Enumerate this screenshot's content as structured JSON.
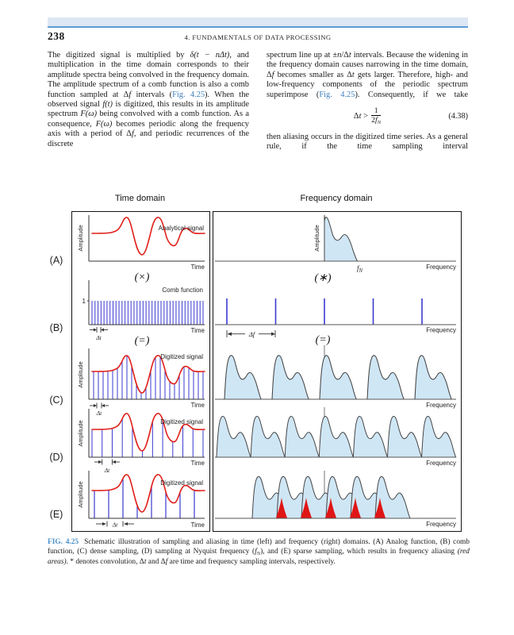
{
  "header": {
    "page_number": "238",
    "running_title": "4. FUNDAMENTALS OF DATA PROCESSING"
  },
  "body": {
    "left_paragraph": [
      {
        "t": "The digitized signal is multiplied by "
      },
      {
        "t": "δ(t − nΔt)",
        "c": "i"
      },
      {
        "t": ", and multiplication in the time domain corresponds to their amplitude spectra being convolved in the frequency domain. The amplitude spectrum of a comb function is also a comb function sampled at Δ"
      },
      {
        "t": "f",
        "c": "i"
      },
      {
        "t": " intervals ("
      },
      {
        "t": "Fig. 4.25",
        "c": "link"
      },
      {
        "t": "). When the observed signal "
      },
      {
        "t": "f(t)",
        "c": "i"
      },
      {
        "t": " is digitized, this results in its amplitude spectrum "
      },
      {
        "t": "F(ω)",
        "c": "i"
      },
      {
        "t": " being convolved with a comb function. As a consequence, "
      },
      {
        "t": "F(ω)",
        "c": "i"
      },
      {
        "t": " becomes periodic along the frequency axis with a period of Δ"
      },
      {
        "t": "f",
        "c": "i"
      },
      {
        "t": ", and periodic recurrences of the discrete"
      }
    ],
    "right_paragraph_1": [
      {
        "t": "spectrum line up at ±"
      },
      {
        "t": "n",
        "c": "i"
      },
      {
        "t": "/Δ"
      },
      {
        "t": "t",
        "c": "i"
      },
      {
        "t": " intervals. Because the widening in the frequency domain causes narrowing in the time domain, Δ"
      },
      {
        "t": "f",
        "c": "i"
      },
      {
        "t": " becomes smaller as Δ"
      },
      {
        "t": "t",
        "c": "i"
      },
      {
        "t": " gets larger. Therefore, high- and low-frequency components of the periodic spectrum superimpose ("
      },
      {
        "t": "Fig. 4.25",
        "c": "link"
      },
      {
        "t": "). Consequently, if we take"
      }
    ],
    "equation": {
      "lhs_segments": [
        {
          "t": "Δ"
        },
        {
          "t": "t",
          "c": "i"
        },
        {
          "t": " >"
        }
      ],
      "numerator": "1",
      "denominator_segments": [
        {
          "t": "2"
        },
        {
          "t": "f",
          "c": "i"
        },
        {
          "t": "N",
          "c": "sub"
        }
      ],
      "number": "(4.38)"
    },
    "right_paragraph_2": "then aliasing occurs in the digitized time series. As a general rule, if the time sampling interval"
  },
  "figure": {
    "time_domain_title": "Time domain",
    "frequency_domain_title": "Frequency domain",
    "panel_labels": [
      "(A)",
      "(B)",
      "(C)",
      "(D)",
      "(E)"
    ],
    "labels": {
      "amplitude": "Amplitude",
      "time": "Time",
      "frequency": "Frequency",
      "analytical_signal": "Analytical signal",
      "comb_function": "Comb function",
      "digitized_signal": "Digitized signal",
      "one": "1",
      "delta_t": "Δt",
      "delta_f": "Δf",
      "f_italic": "f",
      "f_sub": "N"
    },
    "operators": {
      "multiply": "(×)",
      "convolve": "(∗)",
      "equals": "(=)"
    }
  },
  "caption": {
    "label": "FIG. 4.25",
    "segments": [
      {
        "t": "Schematic illustration of sampling and aliasing in time (left) and frequency (right) domains. (A) Analog function, (B) comb function, (C) dense sampling, (D) sampling at Nyquist frequency ("
      },
      {
        "t": "f",
        "c": "i"
      },
      {
        "t": "N",
        "c": "sub"
      },
      {
        "t": "), and (E) sparse sampling, which results in frequency aliasing "
      },
      {
        "t": "(red areas)",
        "c": "i"
      },
      {
        "t": ". * denotes convolution, Δ"
      },
      {
        "t": "t",
        "c": "i"
      },
      {
        "t": " and Δ"
      },
      {
        "t": "f",
        "c": "i"
      },
      {
        "t": " are time and frequency sampling intervals, respectively."
      }
    ]
  },
  "colors": {
    "signal_red": "#e01f1a",
    "comb_blue": "#3a3ad0",
    "spectrum_fill": "#cfe6f5",
    "spectrum_stroke": "#444444",
    "aliasing_red": "#e01616",
    "reference_link_blue": "#3d7fbe",
    "caption_label_blue": "#4a90c8",
    "header_band_fill": "#dde7f5",
    "header_band_line": "#5b9bd5"
  }
}
